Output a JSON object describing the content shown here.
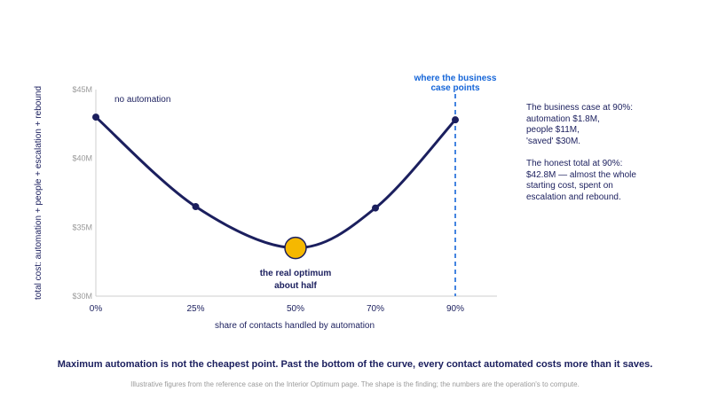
{
  "chart_data": {
    "type": "line",
    "xlabel": "share of contacts handled by automation",
    "ylabel": "total cost: automation + people + escalation + rebound",
    "x_ticks": [
      "0%",
      "25%",
      "50%",
      "70%",
      "90%"
    ],
    "y_ticks": [
      "$30M",
      "$35M",
      "$40M",
      "$45M"
    ],
    "xlim": [
      0,
      100
    ],
    "ylim": [
      30,
      45
    ],
    "y_unit": "$M",
    "series": [
      {
        "points": [
          {
            "x": 0,
            "y": 43.0
          },
          {
            "x": 25,
            "y": 36.5
          },
          {
            "x": 50,
            "y": 33.5
          },
          {
            "x": 70,
            "y": 36.4
          },
          {
            "x": 90,
            "y": 42.8
          }
        ]
      }
    ],
    "optimum": {
      "x": 50,
      "y": 33.5
    },
    "reference_line_x": 90,
    "grid": false,
    "annotations": {
      "start": "no automation",
      "optimum": [
        "the real optimum",
        "about half"
      ],
      "reference": [
        "where the business",
        "case points"
      ]
    }
  },
  "side_notes": {
    "business_case": [
      "The business case at 90%:",
      "automation $1.8M,",
      "people $11M,",
      "'saved' $30M."
    ],
    "honest_total": [
      "The honest total at 90%:",
      "$42.8M — almost the whole",
      "starting cost, spent on",
      "escalation and rebound."
    ]
  },
  "headline": "Maximum automation is not the cheapest point. Past the bottom of the curve, every contact automated costs more than it saves.",
  "footnote": "Illustrative figures from the reference case on the Interior Optimum page. The shape is the finding; the numbers are the operation's to compute.",
  "colors": {
    "curve": "#1b1f5e",
    "optimum_fill": "#f5b800",
    "reference_line": "#1565d8",
    "axis": "#cfcfcf",
    "muted_text": "#9a9a9a"
  }
}
